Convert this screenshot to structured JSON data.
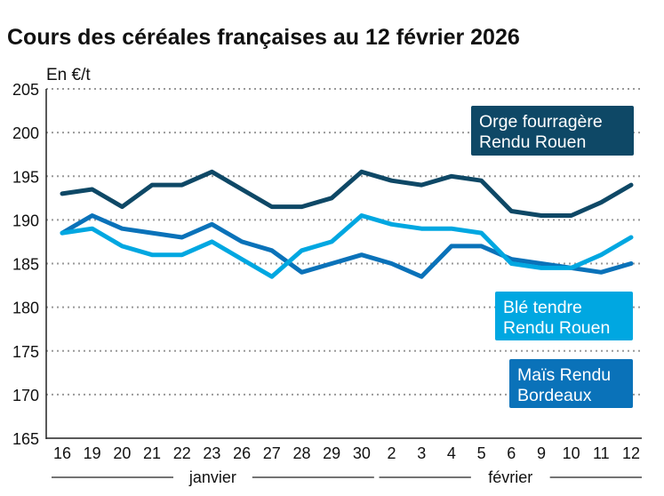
{
  "chart_data": {
    "type": "line",
    "title": "Cours des céréales françaises au 12 février 2026",
    "ylabel": "En €/t",
    "ylim": [
      165,
      205
    ],
    "yticks": [
      165,
      170,
      175,
      180,
      185,
      190,
      195,
      200,
      205
    ],
    "grid": true,
    "categories": [
      "16",
      "19",
      "20",
      "21",
      "22",
      "23",
      "26",
      "27",
      "28",
      "29",
      "30",
      "2",
      "3",
      "4",
      "5",
      "6",
      "9",
      "10",
      "11",
      "12"
    ],
    "month_groups": [
      {
        "label": "janvier",
        "from": "16",
        "to": "30"
      },
      {
        "label": "février",
        "from": "2",
        "to": "12"
      }
    ],
    "series": [
      {
        "name": "Orge fourragère Rendu Rouen",
        "label_lines": [
          "Orge fourragère",
          "Rendu Rouen"
        ],
        "color": "#0e4866",
        "values": [
          193,
          193.5,
          191.5,
          194,
          194,
          195.5,
          193.5,
          191.5,
          191.5,
          192.5,
          195.5,
          194.5,
          194,
          195,
          194.5,
          191,
          190.5,
          190.5,
          192,
          194
        ]
      },
      {
        "name": "Blé tendre Rendu Rouen",
        "label_lines": [
          "Blé tendre",
          "Rendu Rouen"
        ],
        "color": "#00a7e1",
        "values": [
          188.5,
          189,
          187,
          186,
          186,
          187.5,
          185.5,
          183.5,
          186.5,
          187.5,
          190.5,
          189.5,
          189,
          189,
          188.5,
          185,
          184.5,
          184.5,
          186,
          188
        ]
      },
      {
        "name": "Maïs Rendu Bordeaux",
        "label_lines": [
          "Maïs Rendu",
          "Bordeaux"
        ],
        "color": "#0a72b9",
        "values": [
          188.5,
          190.5,
          189,
          188.5,
          188,
          189.5,
          187.5,
          186.5,
          184,
          185,
          186,
          185,
          183.5,
          187,
          187,
          185.5,
          185,
          184.5,
          184,
          185
        ]
      }
    ]
  }
}
